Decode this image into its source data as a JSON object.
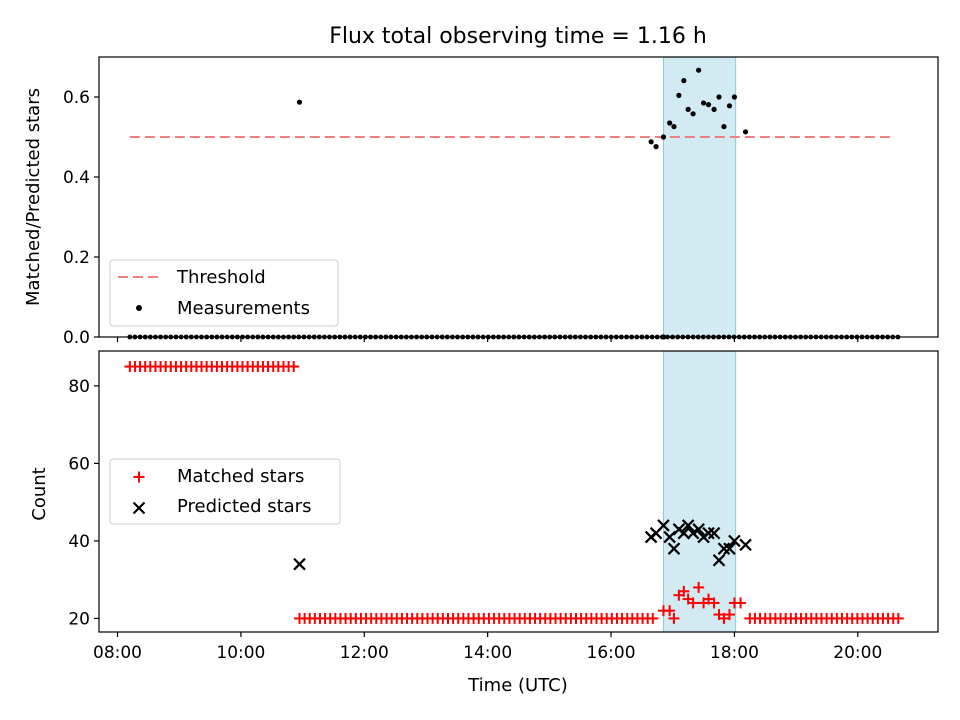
{
  "chart_data": {
    "type": "scatter",
    "title": "Flux total observing time = 1.16 h",
    "xlabel": "Time (UTC)",
    "xlim": [
      7.7,
      21.3
    ],
    "x_ticks": [
      {
        "value": 8,
        "label": "08:00"
      },
      {
        "value": 10,
        "label": "10:00"
      },
      {
        "value": 12,
        "label": "12:00"
      },
      {
        "value": 14,
        "label": "14:00"
      },
      {
        "value": 16,
        "label": "16:00"
      },
      {
        "value": 18,
        "label": "18:00"
      },
      {
        "value": 20,
        "label": "20:00"
      }
    ],
    "highlight_span": {
      "start": 16.85,
      "end": 18.02,
      "color": "#add8e6"
    },
    "top_panel": {
      "ylabel": "Matched/Predicted stars",
      "ylim": [
        0,
        0.7
      ],
      "y_ticks": [
        {
          "value": 0.0,
          "label": "0.0"
        },
        {
          "value": 0.2,
          "label": "0.2"
        },
        {
          "value": 0.4,
          "label": "0.4"
        },
        {
          "value": 0.6,
          "label": "0.6"
        }
      ],
      "legend_position": "lower left",
      "threshold": {
        "name": "Threshold",
        "value": 0.5,
        "x_start": 8.2,
        "x_end": 20.6,
        "color": "#f08080"
      },
      "measurements": {
        "name": "Measurements",
        "color": "#000000",
        "zero_range": [
          8.2,
          20.7
        ],
        "zero_step": 0.083,
        "nonzero": [
          [
            10.95,
            0.587
          ],
          [
            16.65,
            0.488
          ],
          [
            16.73,
            0.476
          ],
          [
            16.85,
            0.5
          ],
          [
            16.95,
            0.535
          ],
          [
            17.02,
            0.526
          ],
          [
            17.1,
            0.604
          ],
          [
            17.18,
            0.641
          ],
          [
            17.25,
            0.569
          ],
          [
            17.33,
            0.558
          ],
          [
            17.42,
            0.667
          ],
          [
            17.5,
            0.585
          ],
          [
            17.58,
            0.581
          ],
          [
            17.67,
            0.569
          ],
          [
            17.75,
            0.6
          ],
          [
            17.83,
            0.526
          ],
          [
            17.92,
            0.578
          ],
          [
            18.0,
            0.6
          ],
          [
            18.18,
            0.513
          ],
          [
            16.85,
            0.0
          ]
        ]
      }
    },
    "bottom_panel": {
      "ylabel": "Count",
      "ylim": [
        16.5,
        89
      ],
      "y_ticks": [
        {
          "value": 20,
          "label": "20"
        },
        {
          "value": 40,
          "label": "40"
        },
        {
          "value": 60,
          "label": "60"
        },
        {
          "value": 80,
          "label": "80"
        }
      ],
      "legend_position": "center left",
      "matched": {
        "name": "Matched stars",
        "color": "#ff0000",
        "runs": [
          {
            "start": 8.2,
            "end": 10.9,
            "step": 0.083,
            "value": 85
          },
          {
            "start": 10.95,
            "end": 16.75,
            "step": 0.083,
            "value": 20
          },
          {
            "start": 18.25,
            "end": 20.7,
            "step": 0.083,
            "value": 20
          }
        ],
        "points": [
          [
            16.85,
            22
          ],
          [
            16.95,
            22
          ],
          [
            17.02,
            20
          ],
          [
            17.1,
            26
          ],
          [
            17.18,
            27
          ],
          [
            17.25,
            25
          ],
          [
            17.33,
            24
          ],
          [
            17.42,
            28
          ],
          [
            17.5,
            24
          ],
          [
            17.58,
            25
          ],
          [
            17.67,
            24
          ],
          [
            17.75,
            21
          ],
          [
            17.83,
            20
          ],
          [
            17.92,
            21
          ],
          [
            18.0,
            24
          ],
          [
            18.1,
            24
          ]
        ]
      },
      "predicted": {
        "name": "Predicted stars",
        "color": "#000000",
        "points": [
          [
            10.95,
            34
          ],
          [
            16.65,
            41
          ],
          [
            16.73,
            42
          ],
          [
            16.85,
            44
          ],
          [
            16.95,
            41
          ],
          [
            17.02,
            38
          ],
          [
            17.1,
            43
          ],
          [
            17.18,
            42
          ],
          [
            17.25,
            44
          ],
          [
            17.33,
            42
          ],
          [
            17.42,
            43
          ],
          [
            17.5,
            41
          ],
          [
            17.58,
            42
          ],
          [
            17.67,
            42
          ],
          [
            17.75,
            35
          ],
          [
            17.83,
            38
          ],
          [
            17.92,
            38
          ],
          [
            18.0,
            40
          ],
          [
            18.18,
            39
          ]
        ]
      }
    }
  }
}
